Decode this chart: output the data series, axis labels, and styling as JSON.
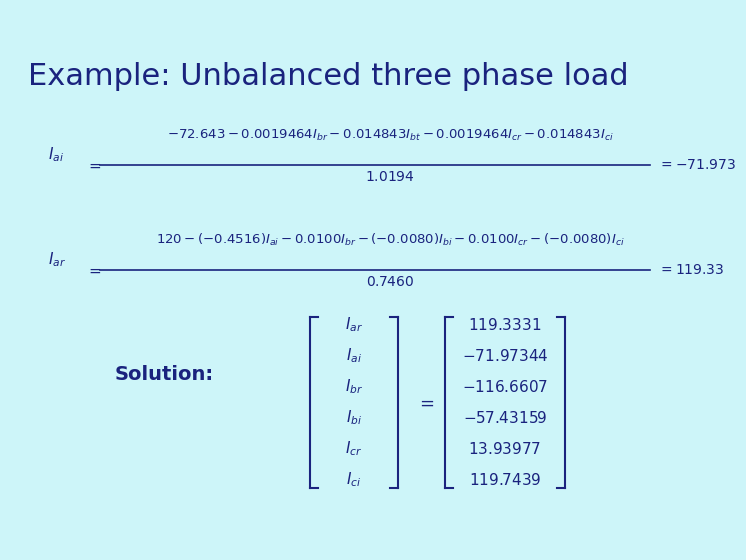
{
  "background_color": "#cdf5f9",
  "title": "Example: Unbalanced three phase load",
  "title_color": "#1a237e",
  "title_fontsize": 22,
  "math_color": "#1a237e",
  "eq1_lhs_label": "$I_{ai}$",
  "eq1_num": "$-72.643 - 0.0019464I_{br} - 0.014843I_{bt} - 0.0019464I_{cr} - 0.014843I_{ci}$",
  "eq1_den": "$1.0194$",
  "eq1_result": "$= -71.973$",
  "eq2_lhs_label": "$I_{ar}$",
  "eq2_num": "$120 - (-0.4516)I_{ai} - 0.0100I_{br} - (-0.0080)I_{bi} - 0.0100I_{cr} - (-0.0080)I_{ci}$",
  "eq2_den": "$0.7460$",
  "eq2_result": "$= 119.33$",
  "solution_label": "Solution:",
  "vec_labels": [
    "$I_{ar}$",
    "$I_{ai}$",
    "$I_{br}$",
    "$I_{bi}$",
    "$I_{cr}$",
    "$I_{ci}$"
  ],
  "vec_values": [
    "$119.3331$",
    "$-71.97344$",
    "$-116.6607$",
    "$-57.43159$",
    "$13.93977$",
    "$119.7439$"
  ]
}
